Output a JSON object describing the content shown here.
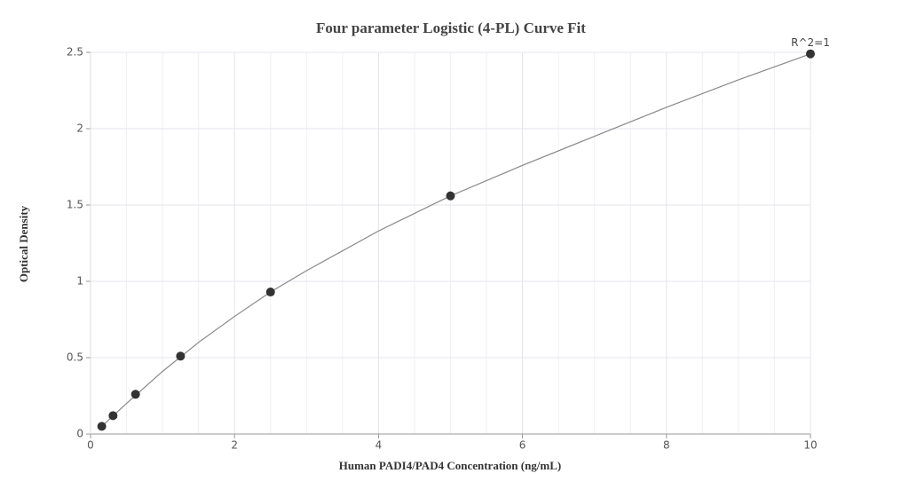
{
  "chart_data": {
    "type": "scatter",
    "title": "Four parameter Logistic (4-PL) Curve Fit",
    "x_label": "Human PADI4/PAD4 Concentration (ng/mL)",
    "y_label": "Optical Density",
    "annotation": "R^2=1",
    "x": [
      0.156,
      0.3125,
      0.625,
      1.25,
      2.5,
      5,
      10
    ],
    "values": [
      0.05,
      0.12,
      0.26,
      0.51,
      0.93,
      1.56,
      2.49
    ],
    "color": "#333333",
    "fit_line": {
      "color": "#888888",
      "x": [
        0.156,
        0.5,
        1,
        1.5,
        2,
        2.5,
        3,
        4,
        5,
        6,
        7,
        8,
        9,
        10
      ],
      "values": [
        0.05,
        0.2,
        0.41,
        0.6,
        0.77,
        0.93,
        1.07,
        1.33,
        1.56,
        1.76,
        1.95,
        2.14,
        2.32,
        2.49
      ]
    },
    "xlim": [
      0,
      10
    ],
    "ylim": [
      0,
      2.5
    ],
    "xticks": [
      0,
      2,
      4,
      6,
      8,
      10
    ],
    "yticks": [
      0,
      0.5,
      1,
      1.5,
      2,
      2.5
    ],
    "x_minor_grid": [
      0.5,
      1,
      1.5,
      2.5,
      3,
      3.5,
      4.5,
      5,
      5.5,
      6.5,
      7,
      7.5,
      8.5,
      9,
      9.5
    ],
    "grid": true
  }
}
